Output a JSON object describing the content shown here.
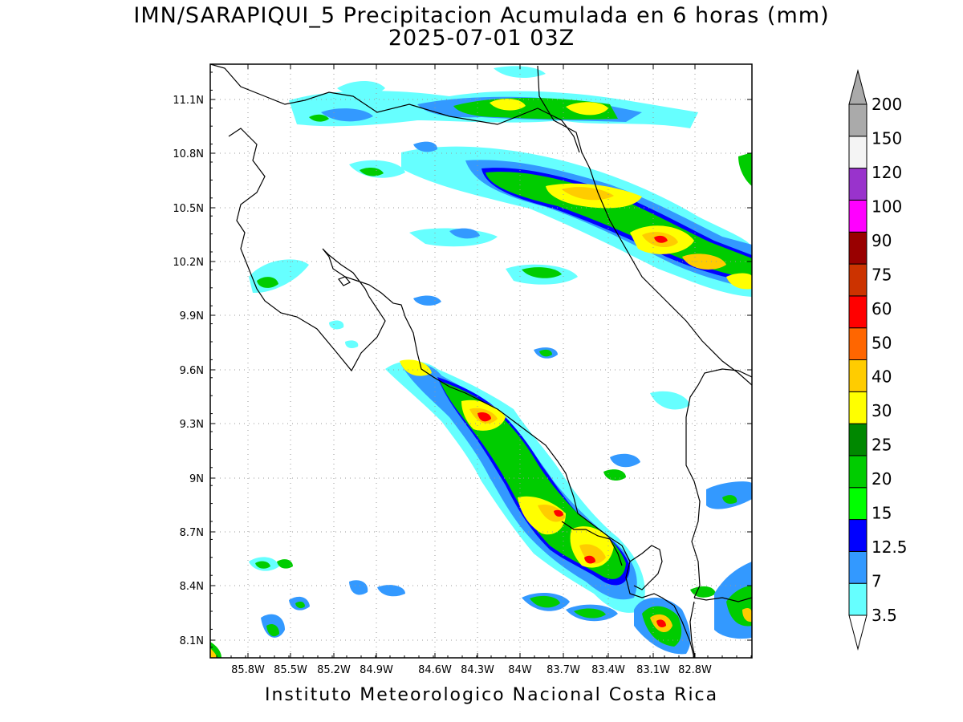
{
  "title": {
    "line1": "IMN/SARAPIQUI_5 Precipitacion Acumulada en 6 horas (mm)",
    "line2": "2025-07-01 03Z"
  },
  "footer": "Instituto Meteorologico Nacional Costa Rica",
  "axes": {
    "lat_labels": [
      "11.1N",
      "10.8N",
      "10.5N",
      "10.2N",
      "9.9N",
      "9.6N",
      "9.3N",
      "9N",
      "8.7N",
      "8.4N",
      "8.1N"
    ],
    "lon_labels": [
      "85.8W",
      "85.5W",
      "85.2W",
      "84.9W",
      "84.6W",
      "84.3W",
      "84W",
      "83.7W",
      "83.4W",
      "83.1W",
      "82.8W"
    ]
  },
  "colorbar": {
    "labels": [
      "3.5",
      "7",
      "12.5",
      "15",
      "20",
      "25",
      "30",
      "40",
      "50",
      "60",
      "75",
      "90",
      "100",
      "120",
      "150",
      "200"
    ],
    "colors": [
      "#66ffff",
      "#3399ff",
      "#0000ff",
      "#00ff00",
      "#00cc00",
      "#008800",
      "#ffff00",
      "#ffcc00",
      "#ff6600",
      "#ff0000",
      "#cc3300",
      "#990000",
      "#ff00ff",
      "#9933cc",
      "#f4f4f4",
      "#aaaaaa"
    ]
  }
}
